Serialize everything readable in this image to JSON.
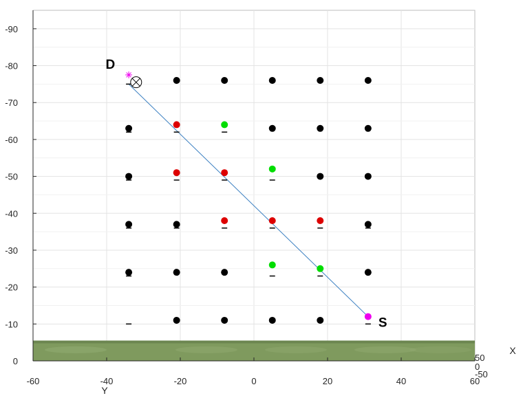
{
  "chart_data": {
    "type": "scatter",
    "title": "",
    "xlabel": "Y",
    "ylabel": "",
    "zlabel": "X",
    "xlim": [
      -60,
      60
    ],
    "ylim": [
      0,
      -95
    ],
    "xticks": [
      -60,
      -40,
      -20,
      0,
      20,
      40,
      60
    ],
    "yticks": [
      0,
      -10,
      -20,
      -30,
      -40,
      -50,
      -60,
      -70,
      -80,
      -90
    ],
    "zticks": [
      "50",
      "0",
      "-50"
    ],
    "grid": true,
    "ground_color": "#7f9a5e",
    "series": [
      {
        "color": "#000000",
        "points": [
          [
            -21,
            -76
          ],
          [
            -8,
            -76
          ],
          [
            5,
            -76
          ],
          [
            18,
            -76
          ],
          [
            31,
            -76
          ],
          [
            -34,
            -63
          ],
          [
            5,
            -63
          ],
          [
            18,
            -63
          ],
          [
            31,
            -63
          ],
          [
            -34,
            -50
          ],
          [
            18,
            -50
          ],
          [
            31,
            -50
          ],
          [
            -34,
            -37
          ],
          [
            -21,
            -37
          ],
          [
            31,
            -37
          ],
          [
            -34,
            -24
          ],
          [
            -21,
            -24
          ],
          [
            -8,
            -24
          ],
          [
            31,
            -24
          ],
          [
            -21,
            -11
          ],
          [
            -8,
            -11
          ],
          [
            5,
            -11
          ],
          [
            18,
            -11
          ]
        ]
      },
      {
        "color": "#dd0000",
        "points": [
          [
            -21,
            -64
          ],
          [
            -21,
            -51
          ],
          [
            -8,
            -51
          ],
          [
            -8,
            -38
          ],
          [
            5,
            -38
          ],
          [
            18,
            -38
          ]
        ]
      },
      {
        "color": "#00dd00",
        "points": [
          [
            -8,
            -64
          ],
          [
            5,
            -52
          ],
          [
            5,
            -26
          ],
          [
            18,
            -25
          ]
        ]
      },
      {
        "color": "#ee00ee",
        "points": [
          [
            31,
            -12
          ]
        ]
      }
    ],
    "shadow_marks": [
      [
        -34,
        -75
      ],
      [
        -21,
        -62
      ],
      [
        -8,
        -62
      ],
      [
        -34,
        -62
      ],
      [
        -21,
        -49
      ],
      [
        -8,
        -49
      ],
      [
        5,
        -49
      ],
      [
        -34,
        -49
      ],
      [
        -34,
        -36
      ],
      [
        -21,
        -36
      ],
      [
        -8,
        -36
      ],
      [
        5,
        -36
      ],
      [
        18,
        -36
      ],
      [
        31,
        -36
      ],
      [
        -34,
        -23
      ],
      [
        5,
        -23
      ],
      [
        18,
        -23
      ],
      [
        -34,
        -10
      ],
      [
        31,
        -10
      ]
    ],
    "path_line": {
      "color": "#3a7fc1",
      "from": [
        -34,
        -75
      ],
      "to": [
        31,
        -12
      ]
    },
    "destination_marker": {
      "star": [
        -34,
        -77.5
      ],
      "circle_x": [
        -32,
        -75.5
      ]
    },
    "annotations": [
      {
        "text": "D",
        "x": -39,
        "y": -80.5
      },
      {
        "text": "S",
        "x": 35,
        "y": -10.5
      }
    ]
  }
}
